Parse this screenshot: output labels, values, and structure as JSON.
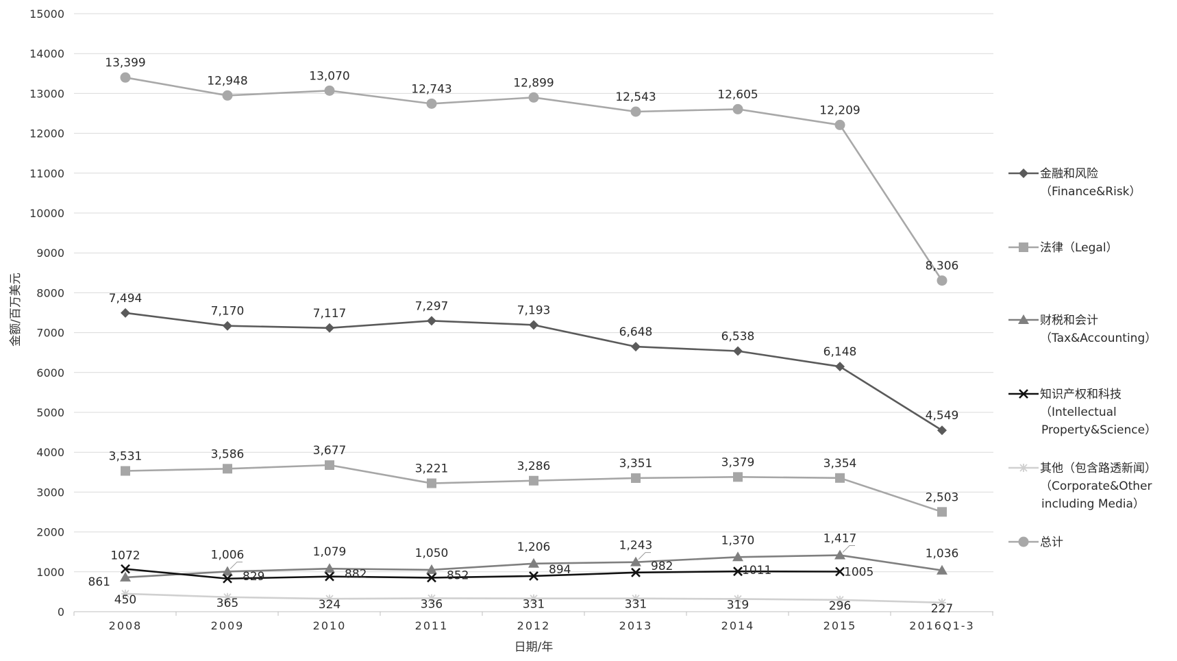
{
  "chart_data": {
    "type": "line",
    "title": "",
    "xlabel": "日期/年",
    "ylabel": "金额/百万美元",
    "ylim": [
      0,
      15000
    ],
    "yticks": [
      0,
      1000,
      2000,
      3000,
      4000,
      5000,
      6000,
      7000,
      8000,
      9000,
      10000,
      11000,
      12000,
      13000,
      14000,
      15000
    ],
    "grid": true,
    "legend_position": "right",
    "categories": [
      "2008",
      "2009",
      "2010",
      "2011",
      "2012",
      "2013",
      "2014",
      "2015",
      "2016Q1-3"
    ],
    "series": [
      {
        "name_lines": [
          "金融和风险",
          "（Finance&Risk）"
        ],
        "color": "#5a5a5a",
        "marker": "diamond",
        "values": [
          7494,
          7170,
          7117,
          7297,
          7193,
          6648,
          6538,
          6148,
          4549
        ],
        "labels": [
          "7,494",
          "7,170",
          "7,117",
          "7,297",
          "7,193",
          "6,648",
          "6,538",
          "6,148",
          "4,549"
        ]
      },
      {
        "name_lines": [
          "法律（Legal）"
        ],
        "color": "#a6a6a6",
        "marker": "square",
        "values": [
          3531,
          3586,
          3677,
          3221,
          3286,
          3351,
          3379,
          3354,
          2503
        ],
        "labels": [
          "3,531",
          "3,586",
          "3,677",
          "3,221",
          "3,286",
          "3,351",
          "3,379",
          "3,354",
          "2,503"
        ]
      },
      {
        "name_lines": [
          "财税和会计",
          "（Tax&Accounting）"
        ],
        "color": "#7f7f7f",
        "marker": "triangle",
        "values": [
          861,
          1006,
          1079,
          1050,
          1206,
          1243,
          1370,
          1417,
          1036
        ],
        "labels": [
          "861",
          "1,006",
          "1,079",
          "1,050",
          "1,206",
          "1,243",
          "1,370",
          "1,417",
          "1,036"
        ]
      },
      {
        "name_lines": [
          "知识产权和科技",
          "（Intellectual",
          "Property&Science）"
        ],
        "color": "#111111",
        "marker": "x",
        "values": [
          1072,
          829,
          882,
          852,
          894,
          982,
          1011,
          1005,
          null
        ],
        "labels": [
          "1072",
          "829",
          "882",
          "852",
          "894",
          "982",
          "1011",
          "1005",
          null
        ]
      },
      {
        "name_lines": [
          "其他（包含路透新闻）",
          "（Corporate&Other",
          "including Media）"
        ],
        "color": "#d0d0d0",
        "marker": "star",
        "values": [
          450,
          365,
          324,
          336,
          331,
          331,
          319,
          296,
          227
        ],
        "labels": [
          "450",
          "365",
          "324",
          "336",
          "331",
          "331",
          "319",
          "296",
          "227"
        ]
      },
      {
        "name_lines": [
          "总计"
        ],
        "color": "#a8a8a8",
        "marker": "circle",
        "values": [
          13399,
          12948,
          13070,
          12743,
          12899,
          12543,
          12605,
          12209,
          8306
        ],
        "labels": [
          "13,399",
          "12,948",
          "13,070",
          "12,743",
          "12,899",
          "12,543",
          "12,605",
          "12,209",
          "8,306"
        ]
      }
    ]
  }
}
